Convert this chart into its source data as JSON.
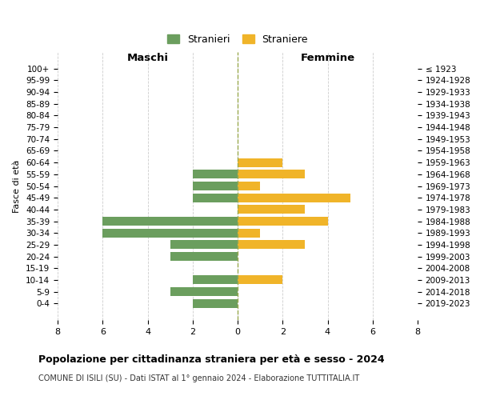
{
  "age_groups": [
    "100+",
    "95-99",
    "90-94",
    "85-89",
    "80-84",
    "75-79",
    "70-74",
    "65-69",
    "60-64",
    "55-59",
    "50-54",
    "45-49",
    "40-44",
    "35-39",
    "30-34",
    "25-29",
    "20-24",
    "15-19",
    "10-14",
    "5-9",
    "0-4"
  ],
  "birth_years": [
    "≤ 1923",
    "1924-1928",
    "1929-1933",
    "1934-1938",
    "1939-1943",
    "1944-1948",
    "1949-1953",
    "1954-1958",
    "1959-1963",
    "1964-1968",
    "1969-1973",
    "1974-1978",
    "1979-1983",
    "1984-1988",
    "1989-1993",
    "1994-1998",
    "1999-2003",
    "2004-2008",
    "2009-2013",
    "2014-2018",
    "2019-2023"
  ],
  "males": [
    0,
    0,
    0,
    0,
    0,
    0,
    0,
    0,
    0,
    2,
    2,
    2,
    0,
    6,
    6,
    3,
    3,
    0,
    2,
    3,
    2
  ],
  "females": [
    0,
    0,
    0,
    0,
    0,
    0,
    0,
    0,
    2,
    3,
    1,
    5,
    3,
    4,
    1,
    3,
    0,
    0,
    2,
    0,
    0
  ],
  "male_color": "#6b9e5e",
  "female_color": "#f0b429",
  "center_line_color": "#9aaa50",
  "grid_color": "#cccccc",
  "title": "Popolazione per cittadinanza straniera per età e sesso - 2024",
  "subtitle": "COMUNE DI ISILI (SU) - Dati ISTAT al 1° gennaio 2024 - Elaborazione TUTTITALIA.IT",
  "xlabel_left": "Maschi",
  "xlabel_right": "Femmine",
  "ylabel_left": "Fasce di età",
  "legend_male": "Stranieri",
  "legend_female": "Straniere",
  "xlim": 8,
  "background_color": "#ffffff",
  "bar_height": 0.75
}
